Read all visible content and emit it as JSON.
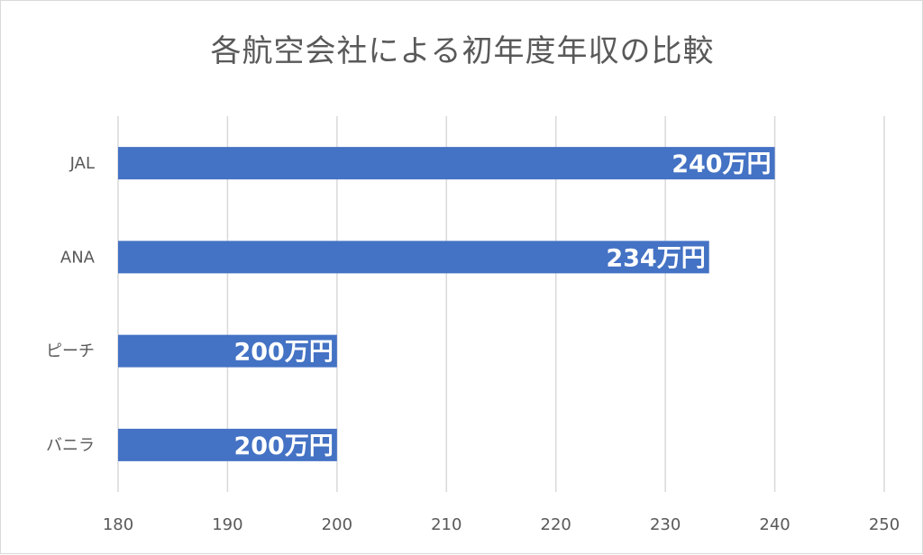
{
  "chart_data": {
    "type": "bar",
    "orientation": "horizontal",
    "title": "各航空会社による初年度年収の比較",
    "categories": [
      "JAL",
      "ANA",
      "ピーチ",
      "バニラ"
    ],
    "values": [
      240,
      234,
      200,
      200
    ],
    "data_labels": [
      "240万円",
      "234万円",
      "200万円",
      "200万円"
    ],
    "xlim": [
      180,
      250
    ],
    "xticks": [
      180,
      190,
      200,
      210,
      220,
      230,
      240,
      250
    ],
    "grid": "vertical",
    "legend": "none",
    "bar_color": "#4472c4"
  }
}
